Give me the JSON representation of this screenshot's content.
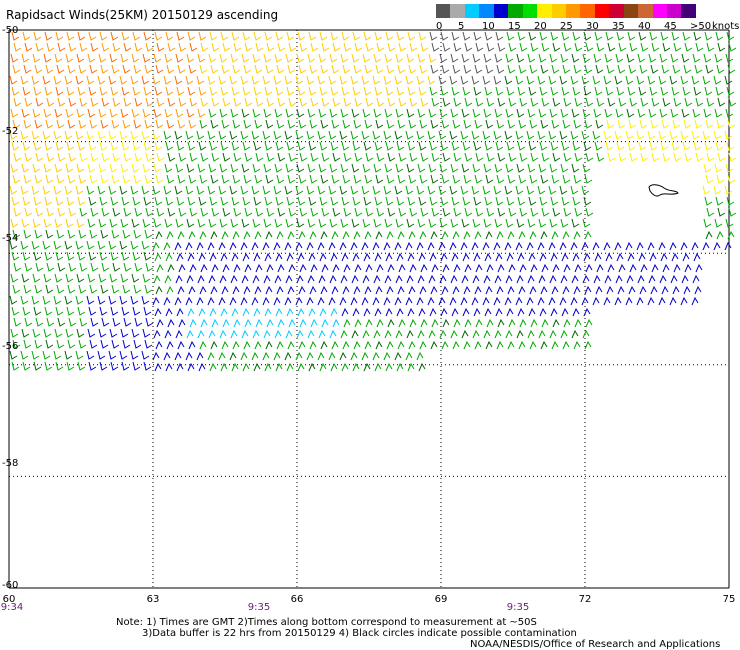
{
  "title": "Rapidsact Winds(25KM) 20150129 ascending",
  "legend": {
    "labels": [
      "0",
      "5",
      "10",
      "15",
      "20",
      "25",
      "30",
      "35",
      "40",
      "45",
      ">50"
    ],
    "unit": "knots",
    "colors": [
      "#555555",
      "#aaaaaa",
      "#00bbff",
      "#0066ff",
      "#00aa00",
      "#00ee00",
      "#ffee00",
      "#ffcc00",
      "#ff9900",
      "#ff6600",
      "#ff0000",
      "#cc0033",
      "#8b4513",
      "#cc6600",
      "#ff00ff",
      "#cc00cc",
      "#660099",
      "#330066"
    ]
  },
  "axes": {
    "x_ticks": [
      "60",
      "63",
      "66",
      "69",
      "72",
      "75"
    ],
    "y_ticks": [
      "-50",
      "-52",
      "-54",
      "-56",
      "-58",
      "-60"
    ]
  },
  "times": [
    "9:34",
    "9:35",
    "9:35"
  ],
  "notes": {
    "line1": "Note: 1) Times are GMT 2)Times along bottom correspond to measurement at ~50S",
    "line2": "3)Data buffer is 22 hrs from 20150129 4) Black circles indicate possible contamination",
    "line3": "NOAA/NESDIS/Office of Research and Applications"
  }
}
